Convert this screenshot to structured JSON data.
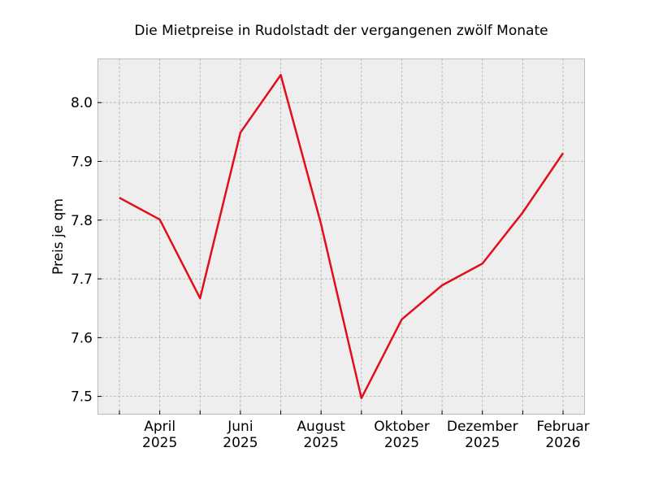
{
  "chart_data": {
    "type": "line",
    "title": "Die Mietpreise in Rudolstadt der vergangenen zwölf Monate",
    "xlabel": "",
    "ylabel": "Preis je qm",
    "x": [
      "2025-03",
      "2025-04",
      "2025-05",
      "2025-06",
      "2025-07",
      "2025-08",
      "2025-09",
      "2025-10",
      "2025-11",
      "2025-12",
      "2026-01",
      "2026-02"
    ],
    "series": [
      {
        "values": [
          7.838,
          7.801,
          7.667,
          7.949,
          8.047,
          7.793,
          7.497,
          7.631,
          7.689,
          7.726,
          7.813,
          7.914
        ],
        "color": "#e20e1c"
      }
    ],
    "x_tick_labels": [
      {
        "month": "2025-04",
        "line1": "April",
        "line2": "2025"
      },
      {
        "month": "2025-06",
        "line1": "Juni",
        "line2": "2025"
      },
      {
        "month": "2025-08",
        "line1": "August",
        "line2": "2025"
      },
      {
        "month": "2025-10",
        "line1": "Oktober",
        "line2": "2025"
      },
      {
        "month": "2025-12",
        "line1": "Dezember",
        "line2": "2025"
      },
      {
        "month": "2026-02",
        "line1": "Februar",
        "line2": "2026"
      }
    ],
    "y_ticks": [
      "7.5",
      "7.6",
      "7.7",
      "7.8",
      "7.9",
      "8.0"
    ],
    "ylim": [
      7.469,
      8.075
    ],
    "grid": true,
    "background": "#eeeeee"
  }
}
